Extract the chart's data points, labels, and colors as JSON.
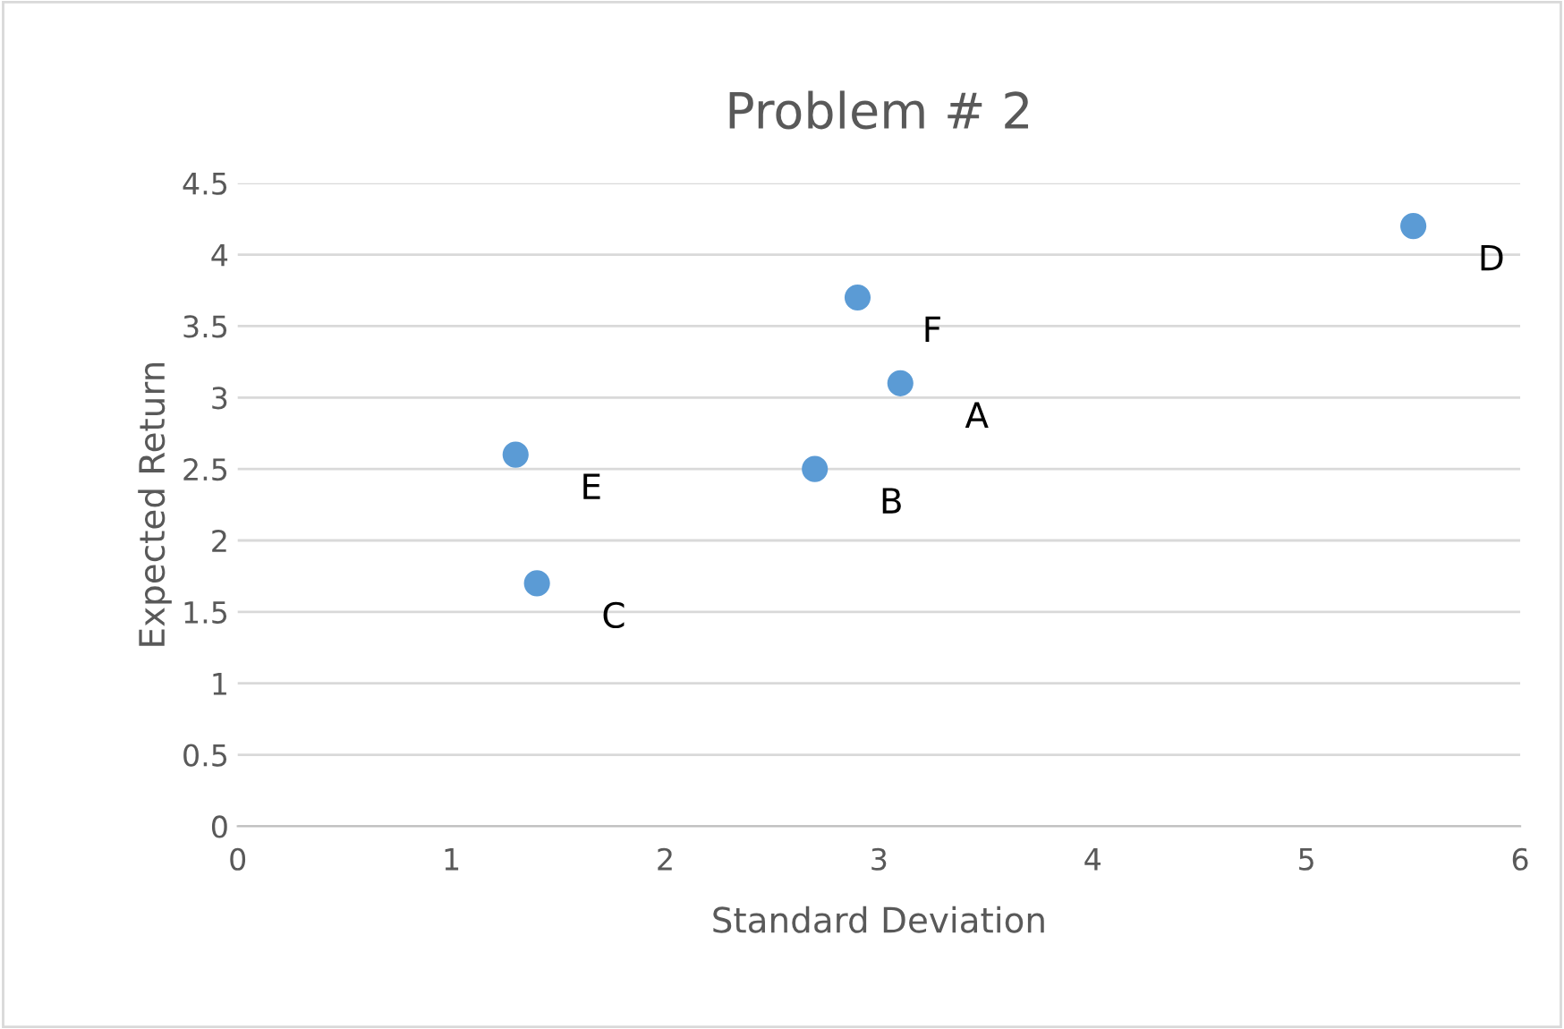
{
  "chart_data": {
    "type": "scatter",
    "title": "Problem # 2",
    "xlabel": "Standard Deviation",
    "ylabel": "Expected Return",
    "x": [
      3.1,
      2.7,
      1.4,
      5.5,
      1.3,
      2.9
    ],
    "values": [
      3.1,
      2.5,
      1.7,
      4.2,
      2.6,
      3.7
    ],
    "color": "#5b9bd5",
    "marker": "circle",
    "xlim": [
      0,
      6
    ],
    "xticks": [
      0,
      1,
      2,
      3,
      4,
      5,
      6
    ],
    "ylim": [
      0,
      4.5
    ],
    "yticks": [
      0,
      0.5,
      1,
      1.5,
      2,
      2.5,
      3,
      3.5,
      4,
      4.5
    ],
    "grid": "y",
    "legend": false,
    "annotations": [
      {
        "text": "A",
        "x": 3.1,
        "y": 3.1
      },
      {
        "text": "B",
        "x": 2.7,
        "y": 2.5
      },
      {
        "text": "C",
        "x": 1.4,
        "y": 1.7
      },
      {
        "text": "D",
        "x": 5.5,
        "y": 4.2
      },
      {
        "text": "E",
        "x": 1.3,
        "y": 2.6
      },
      {
        "text": "F",
        "x": 2.9,
        "y": 3.7
      }
    ]
  }
}
